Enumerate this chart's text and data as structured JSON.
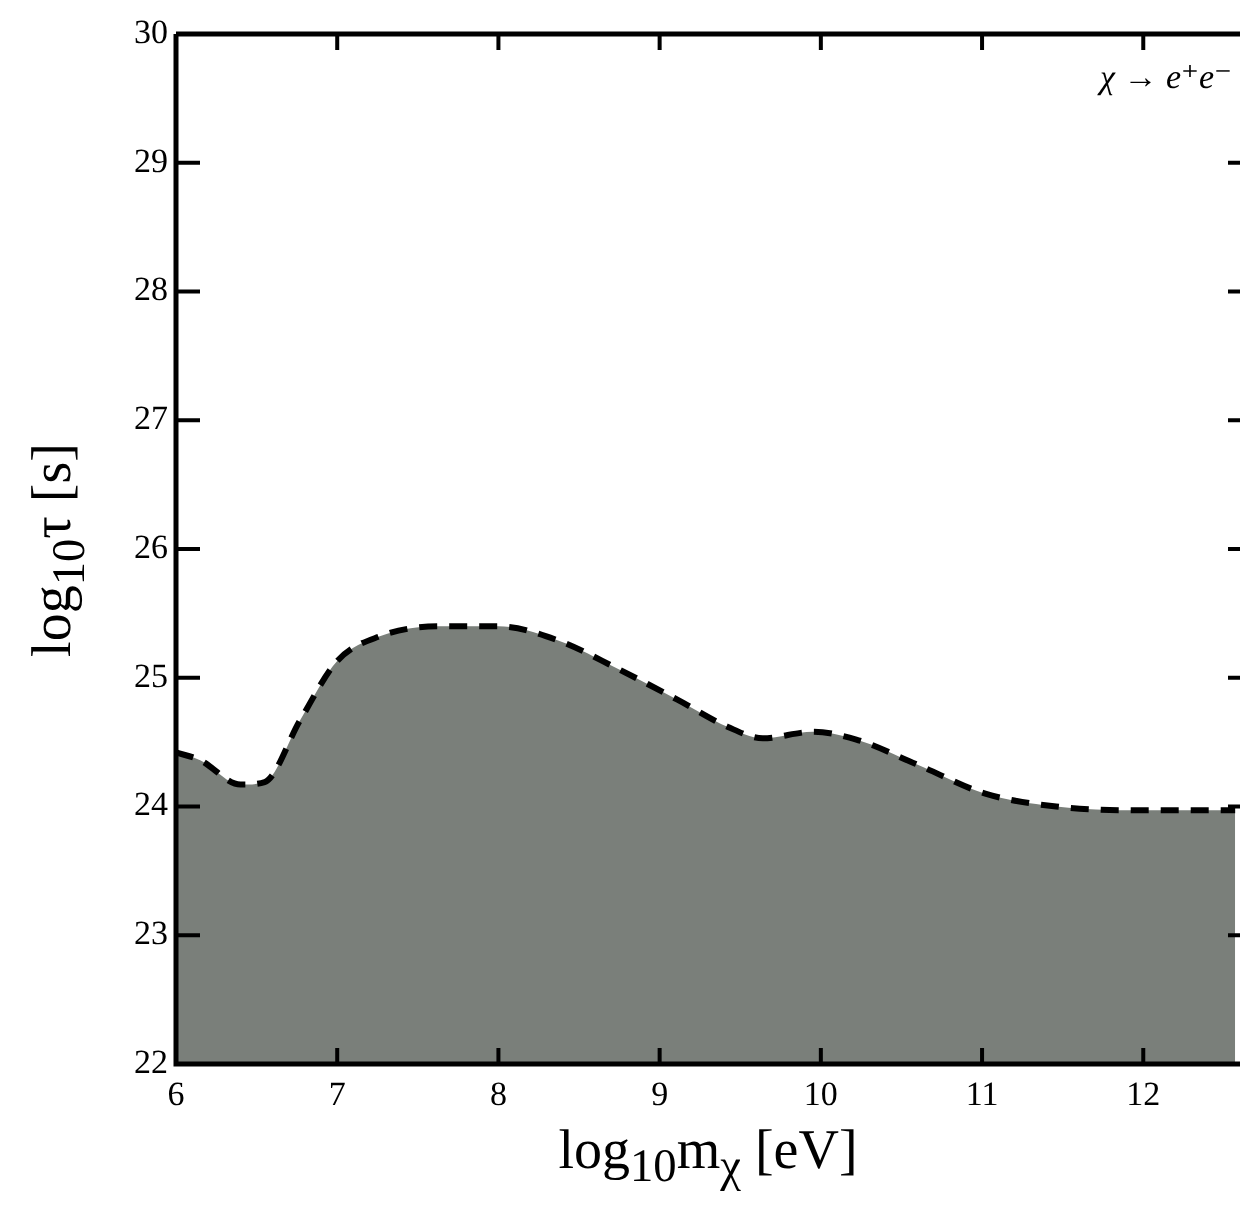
{
  "chart_data": {
    "type": "area",
    "xlabel": "log$_{10}$m$_{χ}$ [eV]",
    "ylabel": "log$_{10}$τ [s]",
    "annotations": [
      "χ → e⁺e⁻"
    ],
    "x": [
      6.0,
      6.15,
      6.4,
      6.55,
      6.77,
      7.0,
      7.26,
      7.63,
      8.0,
      8.37,
      8.74,
      9.11,
      9.42,
      9.64,
      9.95,
      10.22,
      10.59,
      11.02,
      11.46,
      11.95,
      12.57
    ],
    "series": [
      {
        "color": "#7a7f7a",
        "line_style": "dashed",
        "values": [
          24.42,
          24.36,
          24.17,
          24.19,
          24.67,
          25.13,
          25.32,
          25.4,
          25.4,
          25.29,
          25.07,
          24.83,
          24.62,
          24.53,
          24.58,
          24.52,
          24.33,
          24.1,
          24.0,
          23.97,
          23.97
        ]
      }
    ],
    "xlim": [
      6,
      12.6
    ],
    "ylim": [
      22,
      30
    ],
    "xticks": [
      6,
      7,
      8,
      9,
      10,
      11,
      12
    ],
    "yticks": [
      22,
      23,
      24,
      25,
      26,
      27,
      28,
      29,
      30
    ],
    "grid": false
  }
}
